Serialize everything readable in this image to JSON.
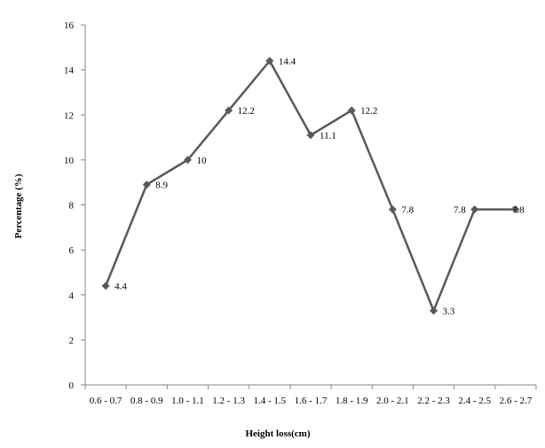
{
  "chart_data": {
    "type": "line",
    "title": "",
    "xlabel": "Height loss(cm)",
    "ylabel": "Percentage (%)",
    "categories": [
      "0.6 - 0.7",
      "0.8 - 0.9",
      "1.0 - 1.1",
      "1.2 - 1.3",
      "1.4 - 1.5",
      "1.6 - 1.7",
      "1.8 - 1.9",
      "2.0 - 2.1",
      "2.2 - 2.3",
      "2.4 - 2.5",
      "2.6 - 2.7"
    ],
    "series": [
      {
        "values": [
          4.4,
          8.9,
          10,
          12.2,
          14.4,
          11.1,
          12.2,
          7.8,
          3.3,
          7.8,
          7.8
        ],
        "data_labels": [
          "4.4",
          "8.9",
          "10",
          "12.2",
          "14.4",
          "11.1",
          "12.2",
          "7.8",
          "3.3",
          "7.8",
          "7.8"
        ],
        "marker": "diamond"
      }
    ],
    "ylim": [
      0,
      16
    ],
    "yticks": [
      0,
      2,
      4,
      6,
      8,
      10,
      12,
      14,
      16
    ],
    "grid": false,
    "legend": "none",
    "colors": {
      "line": "#595959",
      "marker": "#595959",
      "axis": "#868686"
    }
  }
}
